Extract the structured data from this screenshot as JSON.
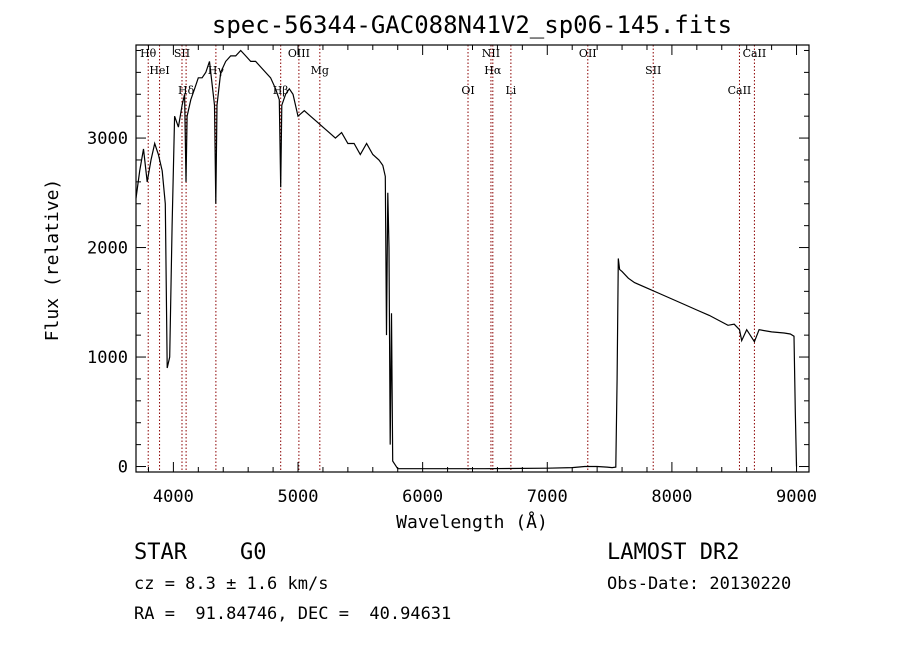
{
  "chart_data": {
    "type": "line",
    "title": "spec-56344-GAC088N41V2_sp06-145.fits",
    "xlabel": "Wavelength (Å)",
    "ylabel": "Flux (relative)",
    "xlim": [
      3700,
      9100
    ],
    "ylim": [
      -50,
      3850
    ],
    "xticks": [
      4000,
      5000,
      6000,
      7000,
      8000,
      9000
    ],
    "yticks": [
      0,
      1000,
      2000,
      3000
    ],
    "grid": false,
    "series": [
      {
        "x": [
          3700,
          3730,
          3760,
          3790,
          3820,
          3850,
          3880,
          3910,
          3935,
          3950,
          3970,
          3990,
          4010,
          4040,
          4070,
          4090,
          4101,
          4110,
          4140,
          4170,
          4200,
          4230,
          4260,
          4290,
          4310,
          4330,
          4340,
          4350,
          4380,
          4420,
          4460,
          4500,
          4540,
          4580,
          4620,
          4660,
          4700,
          4740,
          4780,
          4820,
          4850,
          4861,
          4870,
          4900,
          4930,
          4960,
          5000,
          5050,
          5100,
          5150,
          5200,
          5250,
          5300,
          5350,
          5400,
          5450,
          5500,
          5550,
          5600,
          5650,
          5680,
          5700,
          5710,
          5720,
          5730,
          5740,
          5750,
          5760,
          5800,
          6000,
          6500,
          7000,
          7200,
          7300,
          7400,
          7480,
          7520,
          7550,
          7560,
          7570,
          7580,
          7600,
          7650,
          7700,
          7800,
          7900,
          8000,
          8100,
          8200,
          8300,
          8400,
          8450,
          8500,
          8542,
          8560,
          8600,
          8662,
          8700,
          8800,
          8900,
          8950,
          8980,
          8990,
          9000
        ],
        "values": [
          2450,
          2700,
          2900,
          2600,
          2800,
          2950,
          2850,
          2700,
          2400,
          900,
          1000,
          2200,
          3200,
          3100,
          3300,
          3400,
          2600,
          3200,
          3350,
          3450,
          3550,
          3550,
          3600,
          3700,
          3500,
          3300,
          2400,
          3300,
          3600,
          3700,
          3750,
          3750,
          3800,
          3750,
          3700,
          3700,
          3650,
          3600,
          3550,
          3450,
          3350,
          2550,
          3300,
          3400,
          3450,
          3400,
          3200,
          3250,
          3200,
          3150,
          3100,
          3050,
          3000,
          3050,
          2950,
          2950,
          2850,
          2950,
          2850,
          2800,
          2750,
          2650,
          1200,
          2500,
          2000,
          200,
          1400,
          50,
          -20,
          -20,
          -20,
          -15,
          -10,
          0,
          0,
          -5,
          -10,
          -5,
          800,
          1900,
          1800,
          1780,
          1720,
          1680,
          1630,
          1580,
          1530,
          1480,
          1430,
          1380,
          1320,
          1290,
          1300,
          1250,
          1150,
          1250,
          1140,
          1250,
          1230,
          1220,
          1210,
          1190,
          500,
          0
        ]
      }
    ],
    "lines": [
      {
        "name": "Hθ",
        "x": 3798
      },
      {
        "name": "HeI",
        "x": 3889
      },
      {
        "name": "Hδ",
        "x": 4102
      },
      {
        "name": "SII",
        "x": 4069
      },
      {
        "name": "Hγ",
        "x": 4341
      },
      {
        "name": "Hβ",
        "x": 4861
      },
      {
        "name": "OIII",
        "x": 5007
      },
      {
        "name": "Mg",
        "x": 5175
      },
      {
        "name": "OI",
        "x": 6364
      },
      {
        "name": "NII",
        "x": 6548
      },
      {
        "name": "Hα",
        "x": 6563
      },
      {
        "name": "Li",
        "x": 6708
      },
      {
        "name": "OII",
        "x": 7325
      },
      {
        "name": "SII",
        "x": 7850
      },
      {
        "name": "CaII",
        "x": 8542
      },
      {
        "name": "CaII",
        "x": 8662
      }
    ]
  },
  "info": {
    "object_class": "STAR",
    "subclass": "G0",
    "survey": "LAMOST DR2",
    "cz": "cz = 8.3 ± 1.6 km/s",
    "obs_date": "Obs-Date: 20130220",
    "coords": "RA =  91.84746, DEC =  40.94631"
  },
  "colors": {
    "line": "#000000",
    "marker": "#8b0000"
  }
}
